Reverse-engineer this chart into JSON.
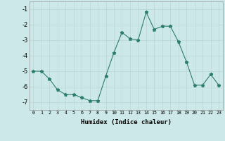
{
  "x": [
    0,
    1,
    2,
    3,
    4,
    5,
    6,
    7,
    8,
    9,
    10,
    11,
    12,
    13,
    14,
    15,
    16,
    17,
    18,
    19,
    20,
    21,
    22,
    23
  ],
  "y": [
    -5,
    -5,
    -5.5,
    -6.2,
    -6.5,
    -6.5,
    -6.7,
    -6.9,
    -6.9,
    -5.3,
    -3.8,
    -2.5,
    -2.9,
    -3.0,
    -1.2,
    -2.3,
    -2.1,
    -2.1,
    -3.1,
    -4.4,
    -5.9,
    -5.9,
    -5.2,
    -5.9
  ],
  "xlim": [
    -0.5,
    23.5
  ],
  "ylim": [
    -7.5,
    -0.5
  ],
  "yticks": [
    -7,
    -6,
    -5,
    -4,
    -3,
    -2,
    -1
  ],
  "xticks": [
    0,
    1,
    2,
    3,
    4,
    5,
    6,
    7,
    8,
    9,
    10,
    11,
    12,
    13,
    14,
    15,
    16,
    17,
    18,
    19,
    20,
    21,
    22,
    23
  ],
  "xlabel": "Humidex (Indice chaleur)",
  "line_color": "#2d7d6d",
  "bg_color": "#cce8e8",
  "grid_color": "#b8d4d4",
  "marker": "*",
  "marker_size": 3.5,
  "linewidth": 0.8,
  "xlabel_fontsize": 6.5,
  "xlabel_fontweight": "bold",
  "ytick_fontsize": 6,
  "xtick_fontsize": 4.8
}
